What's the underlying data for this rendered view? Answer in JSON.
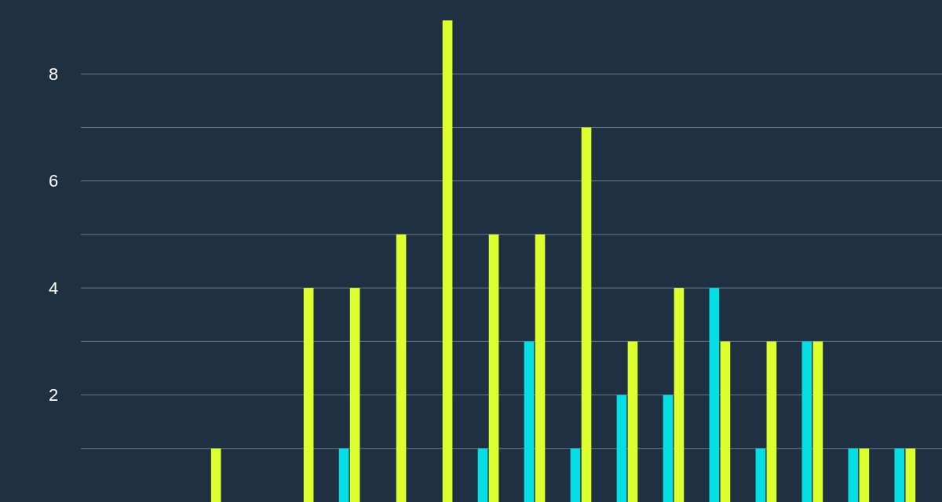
{
  "chart_data": {
    "type": "bar",
    "categories": [
      null,
      null,
      null,
      null,
      null,
      null,
      null,
      null,
      null,
      null,
      null,
      null,
      null,
      null,
      null,
      null,
      null,
      null
    ],
    "series": [
      {
        "color": "#05dfe3",
        "values": [
          0,
          0,
          0,
          0,
          0,
          1,
          0,
          0,
          1,
          3,
          1,
          2,
          2,
          4,
          1,
          3,
          1,
          1
        ]
      },
      {
        "color": "#dcff2e",
        "values": [
          0,
          0,
          1,
          0,
          4,
          4,
          5,
          9,
          5,
          5,
          7,
          3,
          4,
          3,
          3,
          3,
          1,
          1
        ]
      }
    ],
    "ylim": [
      0,
      9
    ],
    "yticks": [
      {
        "value": 1,
        "label": null
      },
      2,
      {
        "value": 3,
        "label": null
      },
      4,
      {
        "value": 5,
        "label": null
      },
      6,
      {
        "value": 7,
        "label": null
      },
      8
    ],
    "grid": "y"
  }
}
